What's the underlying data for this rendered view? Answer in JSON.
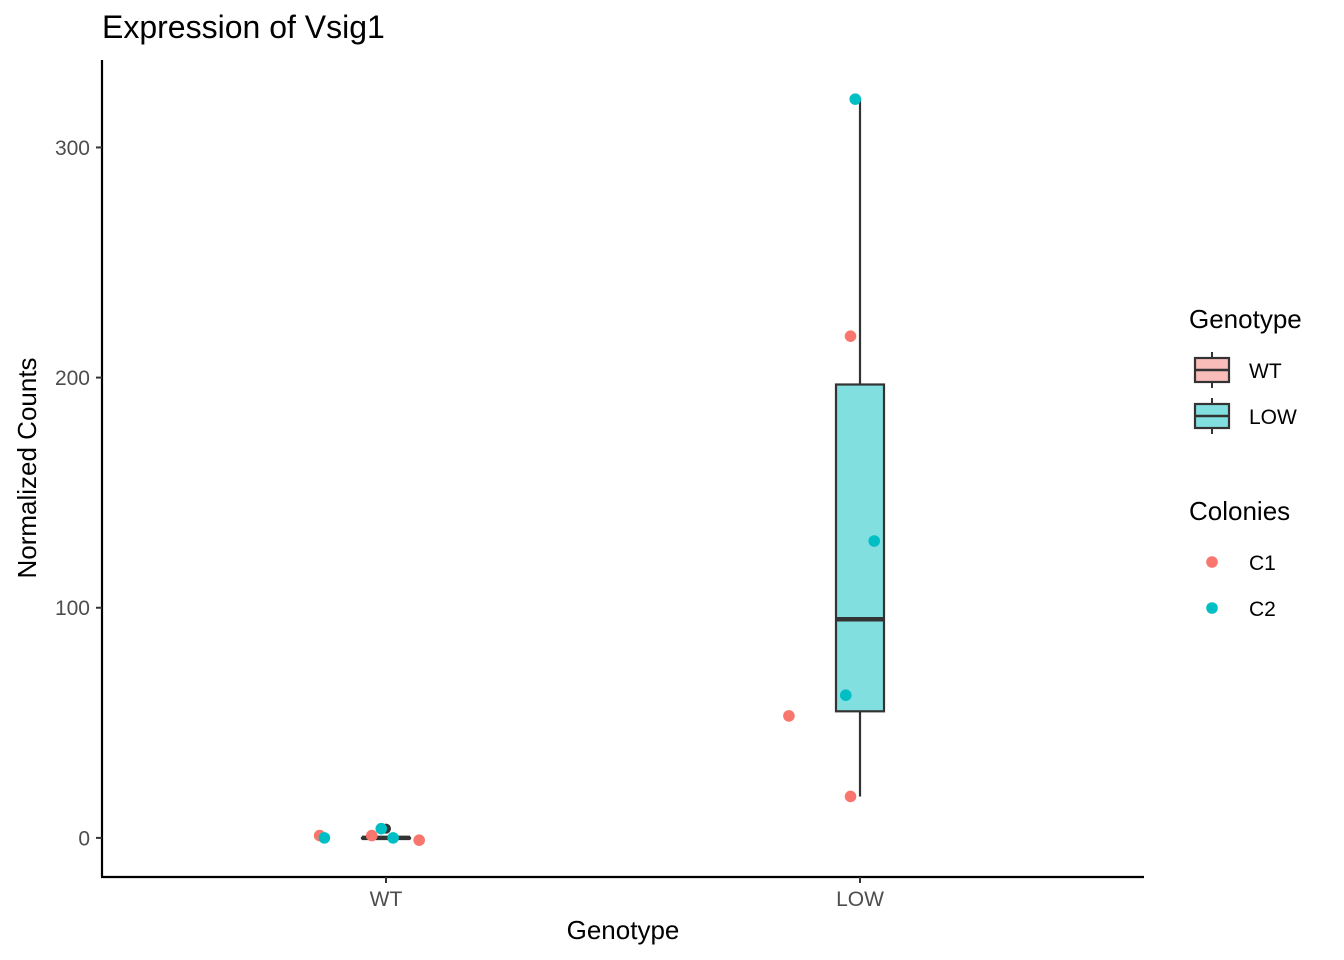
{
  "chart_data": {
    "type": "box",
    "title": "Expression of Vsig1",
    "xlabel": "Genotype",
    "ylabel": "Normalized Counts",
    "categories": [
      "WT",
      "LOW"
    ],
    "ylim": [
      -17,
      338
    ],
    "yticks": [
      0,
      100,
      200,
      300
    ],
    "grid": false,
    "boxes": [
      {
        "category": "WT",
        "fill": "#F8BDB8",
        "min": 0,
        "q1": 0,
        "median": 0,
        "q3": 0,
        "max": 0,
        "outliers": [
          4
        ]
      },
      {
        "category": "LOW",
        "fill": "#82DFDF",
        "min": 18,
        "q1": 55,
        "median": 95,
        "q3": 197,
        "max": 321,
        "outliers": []
      }
    ],
    "points": [
      {
        "category": "WT",
        "jitter": -0.14,
        "y": 1,
        "colony": "C1"
      },
      {
        "category": "WT",
        "jitter": -0.03,
        "y": 1,
        "colony": "C1"
      },
      {
        "category": "WT",
        "jitter": 0.07,
        "y": -1,
        "colony": "C1"
      },
      {
        "category": "WT",
        "jitter": -0.13,
        "y": 0,
        "colony": "C2"
      },
      {
        "category": "WT",
        "jitter": -0.01,
        "y": 4,
        "colony": "C2"
      },
      {
        "category": "WT",
        "jitter": 0.015,
        "y": 0,
        "colony": "C2"
      },
      {
        "category": "LOW",
        "jitter": -0.15,
        "y": 53,
        "colony": "C1"
      },
      {
        "category": "LOW",
        "jitter": -0.02,
        "y": 18,
        "colony": "C1"
      },
      {
        "category": "LOW",
        "jitter": -0.02,
        "y": 218,
        "colony": "C1"
      },
      {
        "category": "LOW",
        "jitter": -0.03,
        "y": 62,
        "colony": "C2"
      },
      {
        "category": "LOW",
        "jitter": 0.03,
        "y": 129,
        "colony": "C2"
      },
      {
        "category": "LOW",
        "jitter": -0.01,
        "y": 321,
        "colony": "C2"
      }
    ],
    "legends": [
      {
        "title": "Genotype",
        "type": "box",
        "entries": [
          {
            "label": "WT",
            "color": "#F8BDB8"
          },
          {
            "label": "LOW",
            "color": "#82DFDF"
          }
        ]
      },
      {
        "title": "Colonies",
        "type": "point",
        "entries": [
          {
            "label": "C1",
            "color": "#F8766D"
          },
          {
            "label": "C2",
            "color": "#00BFC4"
          }
        ]
      }
    ],
    "legend_position": "right"
  }
}
